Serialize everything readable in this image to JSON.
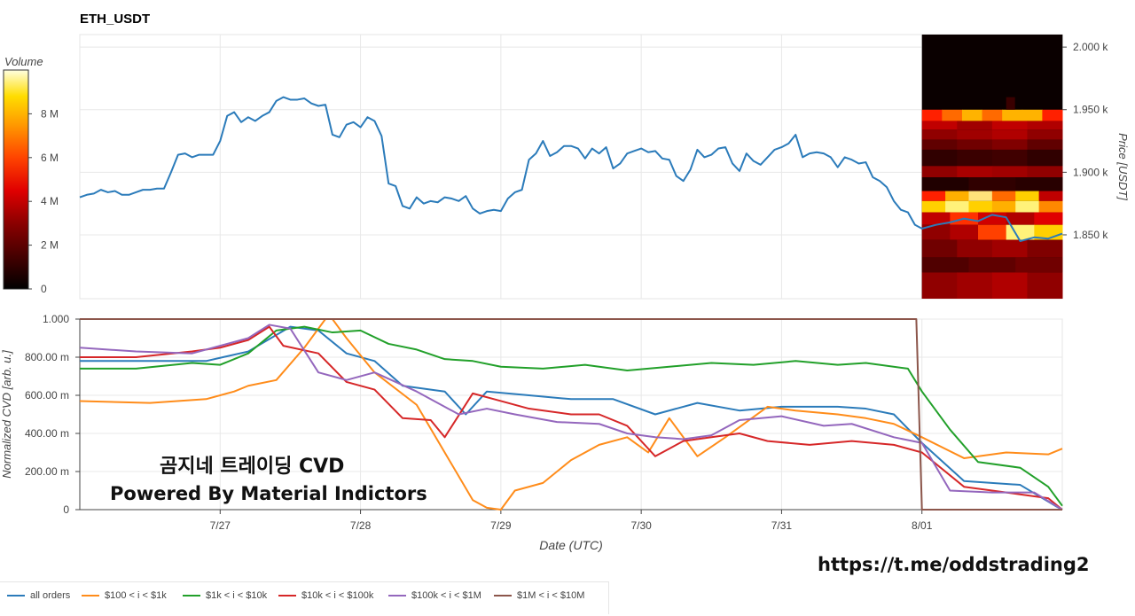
{
  "title": "ETH_USDT",
  "watermark_title": "곰지네 트레이딩 CVD",
  "watermark_powered": "Powered By Material Indictors",
  "link_text": "https://t.me/oddstrading2",
  "colorbar": {
    "title": "Volume",
    "ticks": [
      "0",
      "2 M",
      "4 M",
      "6 M",
      "8 M"
    ],
    "range": [
      0,
      10
    ]
  },
  "chart_data": [
    {
      "type": "line",
      "name": "price",
      "ylabel": "Price [USDT]",
      "y_ticks": [
        "1.850 k",
        "1.900 k",
        "1.950 k",
        "2.000 k"
      ],
      "y_tick_values": [
        1850,
        1900,
        1950,
        2000
      ],
      "ylim": [
        1799,
        2010
      ],
      "x_ticks": [
        "7/27",
        "7/28",
        "7/29",
        "7/30",
        "7/31",
        "8/01"
      ],
      "xlim": [
        0,
        7
      ],
      "heatmap_note": "order-book volume heatmap from x=6.0 to x=7.0",
      "x": [
        0,
        0.05,
        0.1,
        0.15,
        0.2,
        0.25,
        0.3,
        0.35,
        0.4,
        0.45,
        0.5,
        0.55,
        0.6,
        0.65,
        0.7,
        0.75,
        0.8,
        0.85,
        0.9,
        0.95,
        1.0,
        1.05,
        1.1,
        1.15,
        1.2,
        1.25,
        1.3,
        1.35,
        1.4,
        1.45,
        1.5,
        1.55,
        1.6,
        1.65,
        1.7,
        1.75,
        1.8,
        1.85,
        1.9,
        1.95,
        2.0,
        2.05,
        2.1,
        2.15,
        2.2,
        2.25,
        2.3,
        2.35,
        2.4,
        2.45,
        2.5,
        2.55,
        2.6,
        2.65,
        2.7,
        2.75,
        2.8,
        2.85,
        2.9,
        2.95,
        3.0,
        3.05,
        3.1,
        3.15,
        3.2,
        3.25,
        3.3,
        3.35,
        3.4,
        3.45,
        3.5,
        3.55,
        3.6,
        3.65,
        3.7,
        3.75,
        3.8,
        3.85,
        3.9,
        3.95,
        4.0,
        4.05,
        4.1,
        4.15,
        4.2,
        4.25,
        4.3,
        4.35,
        4.4,
        4.45,
        4.5,
        4.55,
        4.6,
        4.65,
        4.7,
        4.75,
        4.8,
        4.85,
        4.9,
        4.95,
        5.0,
        5.05,
        5.1,
        5.15,
        5.2,
        5.25,
        5.3,
        5.35,
        5.4,
        5.45,
        5.5,
        5.55,
        5.6,
        5.65,
        5.7,
        5.75,
        5.8,
        5.85,
        5.9,
        5.95,
        6.0,
        6.1,
        6.2,
        6.3,
        6.4,
        6.5,
        6.6,
        6.7,
        6.8,
        6.9,
        7.0
      ],
      "series": [
        {
          "color": "#2b7bba",
          "values": [
            1880,
            1882,
            1883,
            1886,
            1884,
            1885,
            1882,
            1882,
            1884,
            1886,
            1886,
            1887,
            1887,
            1900,
            1914,
            1915,
            1912,
            1914,
            1914,
            1914,
            1925,
            1945,
            1948,
            1940,
            1944,
            1941,
            1945,
            1948,
            1957,
            1960,
            1958,
            1958,
            1959,
            1955,
            1953,
            1954,
            1930,
            1928,
            1938,
            1940,
            1936,
            1944,
            1941,
            1929,
            1891,
            1889,
            1873,
            1871,
            1880,
            1875,
            1877,
            1876,
            1880,
            1879,
            1877,
            1881,
            1871,
            1867,
            1869,
            1870,
            1869,
            1879,
            1884,
            1886,
            1910,
            1915,
            1925,
            1913,
            1916,
            1921,
            1921,
            1919,
            1911,
            1919,
            1915,
            1920,
            1903,
            1907,
            1915,
            1917,
            1919,
            1916,
            1917,
            1911,
            1910,
            1897,
            1893,
            1902,
            1918,
            1912,
            1914,
            1919,
            1920,
            1907,
            1901,
            1915,
            1909,
            1906,
            1912,
            1918,
            1920,
            1923,
            1930,
            1912,
            1915,
            1916,
            1915,
            1912,
            1904,
            1912,
            1910,
            1907,
            1908,
            1896,
            1893,
            1888,
            1877,
            1870,
            1868,
            1858,
            1855,
            1858,
            1860,
            1863,
            1861,
            1866,
            1864,
            1845,
            1848,
            1847,
            1851
          ]
        }
      ]
    },
    {
      "type": "line",
      "name": "cvd",
      "xlabel": "Date (UTC)",
      "ylabel": "Normalized CVD [arb. u.]",
      "y_ticks": [
        "0",
        "200.00 m",
        "400.00 m",
        "600.00 m",
        "800.00 m",
        "1.000"
      ],
      "y_tick_values": [
        0,
        0.2,
        0.4,
        0.6,
        0.8,
        1.0
      ],
      "ylim": [
        0,
        1.0
      ],
      "x_ticks": [
        "7/27",
        "7/28",
        "7/29",
        "7/30",
        "7/31",
        "8/01"
      ],
      "xlim": [
        0,
        7
      ],
      "series": [
        {
          "name": "all orders",
          "color": "#2b7bba",
          "points": [
            [
              0,
              0.78
            ],
            [
              0.3,
              0.78
            ],
            [
              0.6,
              0.78
            ],
            [
              0.9,
              0.78
            ],
            [
              1.2,
              0.83
            ],
            [
              1.5,
              0.96
            ],
            [
              1.7,
              0.94
            ],
            [
              1.9,
              0.82
            ],
            [
              2.1,
              0.78
            ],
            [
              2.3,
              0.65
            ],
            [
              2.6,
              0.62
            ],
            [
              2.75,
              0.5
            ],
            [
              2.9,
              0.62
            ],
            [
              3.2,
              0.6
            ],
            [
              3.5,
              0.58
            ],
            [
              3.8,
              0.58
            ],
            [
              4.1,
              0.5
            ],
            [
              4.4,
              0.56
            ],
            [
              4.7,
              0.52
            ],
            [
              5.0,
              0.54
            ],
            [
              5.4,
              0.54
            ],
            [
              5.6,
              0.53
            ],
            [
              5.8,
              0.5
            ],
            [
              6.0,
              0.35
            ],
            [
              6.3,
              0.15
            ],
            [
              6.7,
              0.13
            ],
            [
              6.95,
              0.02
            ],
            [
              7.0,
              0.0
            ]
          ]
        },
        {
          "name": "$100 < i < $1k",
          "color": "#ff8c1a",
          "points": [
            [
              0,
              0.57
            ],
            [
              0.5,
              0.56
            ],
            [
              0.9,
              0.58
            ],
            [
              1.1,
              0.62
            ],
            [
              1.2,
              0.65
            ],
            [
              1.4,
              0.68
            ],
            [
              1.6,
              0.85
            ],
            [
              1.75,
              1.0
            ],
            [
              1.8,
              1.0
            ],
            [
              1.9,
              0.9
            ],
            [
              2.1,
              0.72
            ],
            [
              2.4,
              0.55
            ],
            [
              2.8,
              0.05
            ],
            [
              2.9,
              0.01
            ],
            [
              3.0,
              0.0
            ],
            [
              3.1,
              0.1
            ],
            [
              3.3,
              0.14
            ],
            [
              3.5,
              0.26
            ],
            [
              3.7,
              0.34
            ],
            [
              3.9,
              0.38
            ],
            [
              4.05,
              0.3
            ],
            [
              4.2,
              0.48
            ],
            [
              4.4,
              0.28
            ],
            [
              4.6,
              0.38
            ],
            [
              4.9,
              0.54
            ],
            [
              5.1,
              0.52
            ],
            [
              5.4,
              0.5
            ],
            [
              5.6,
              0.48
            ],
            [
              5.8,
              0.45
            ],
            [
              6.0,
              0.38
            ],
            [
              6.3,
              0.27
            ],
            [
              6.6,
              0.3
            ],
            [
              6.9,
              0.29
            ],
            [
              7.0,
              0.32
            ]
          ]
        },
        {
          "name": "$1k < i < $10k",
          "color": "#22a02a",
          "points": [
            [
              0,
              0.74
            ],
            [
              0.4,
              0.74
            ],
            [
              0.8,
              0.77
            ],
            [
              1.0,
              0.76
            ],
            [
              1.2,
              0.82
            ],
            [
              1.4,
              0.94
            ],
            [
              1.6,
              0.96
            ],
            [
              1.8,
              0.93
            ],
            [
              2.0,
              0.94
            ],
            [
              2.2,
              0.87
            ],
            [
              2.4,
              0.84
            ],
            [
              2.6,
              0.79
            ],
            [
              2.8,
              0.78
            ],
            [
              3.0,
              0.75
            ],
            [
              3.3,
              0.74
            ],
            [
              3.6,
              0.76
            ],
            [
              3.9,
              0.73
            ],
            [
              4.2,
              0.75
            ],
            [
              4.5,
              0.77
            ],
            [
              4.8,
              0.76
            ],
            [
              5.1,
              0.78
            ],
            [
              5.4,
              0.76
            ],
            [
              5.6,
              0.77
            ],
            [
              5.9,
              0.74
            ],
            [
              6.0,
              0.62
            ],
            [
              6.2,
              0.42
            ],
            [
              6.4,
              0.25
            ],
            [
              6.7,
              0.22
            ],
            [
              6.9,
              0.12
            ],
            [
              7.0,
              0.02
            ]
          ]
        },
        {
          "name": "$10k < i < $100k",
          "color": "#d62728",
          "points": [
            [
              0,
              0.8
            ],
            [
              0.4,
              0.8
            ],
            [
              0.8,
              0.83
            ],
            [
              1.0,
              0.85
            ],
            [
              1.2,
              0.89
            ],
            [
              1.35,
              0.96
            ],
            [
              1.45,
              0.86
            ],
            [
              1.7,
              0.82
            ],
            [
              1.9,
              0.67
            ],
            [
              2.1,
              0.63
            ],
            [
              2.3,
              0.48
            ],
            [
              2.5,
              0.47
            ],
            [
              2.6,
              0.38
            ],
            [
              2.8,
              0.61
            ],
            [
              3.0,
              0.57
            ],
            [
              3.2,
              0.53
            ],
            [
              3.5,
              0.5
            ],
            [
              3.7,
              0.5
            ],
            [
              3.9,
              0.44
            ],
            [
              4.1,
              0.28
            ],
            [
              4.3,
              0.36
            ],
            [
              4.5,
              0.38
            ],
            [
              4.7,
              0.4
            ],
            [
              4.9,
              0.36
            ],
            [
              5.2,
              0.34
            ],
            [
              5.5,
              0.36
            ],
            [
              5.8,
              0.34
            ],
            [
              6.0,
              0.3
            ],
            [
              6.3,
              0.12
            ],
            [
              6.6,
              0.09
            ],
            [
              6.9,
              0.06
            ],
            [
              7.0,
              0.0
            ]
          ]
        },
        {
          "name": "$100k < i < $1M",
          "color": "#9467bd",
          "points": [
            [
              0,
              0.85
            ],
            [
              0.4,
              0.83
            ],
            [
              0.8,
              0.82
            ],
            [
              1.0,
              0.86
            ],
            [
              1.2,
              0.9
            ],
            [
              1.35,
              0.97
            ],
            [
              1.5,
              0.95
            ],
            [
              1.7,
              0.72
            ],
            [
              1.9,
              0.68
            ],
            [
              2.1,
              0.72
            ],
            [
              2.4,
              0.62
            ],
            [
              2.7,
              0.5
            ],
            [
              2.9,
              0.53
            ],
            [
              3.1,
              0.5
            ],
            [
              3.4,
              0.46
            ],
            [
              3.7,
              0.45
            ],
            [
              3.9,
              0.4
            ],
            [
              4.1,
              0.38
            ],
            [
              4.3,
              0.37
            ],
            [
              4.5,
              0.39
            ],
            [
              4.7,
              0.47
            ],
            [
              5.0,
              0.49
            ],
            [
              5.3,
              0.44
            ],
            [
              5.5,
              0.45
            ],
            [
              5.8,
              0.38
            ],
            [
              6.0,
              0.35
            ],
            [
              6.2,
              0.1
            ],
            [
              6.5,
              0.09
            ],
            [
              6.8,
              0.09
            ],
            [
              7.0,
              0.0
            ]
          ]
        },
        {
          "name": "$1M < i < $10M",
          "color": "#8c564b",
          "points": [
            [
              0,
              1.0
            ],
            [
              5.96,
              1.0
            ],
            [
              6.0,
              0.0
            ],
            [
              7.0,
              0.0
            ]
          ]
        }
      ]
    }
  ]
}
